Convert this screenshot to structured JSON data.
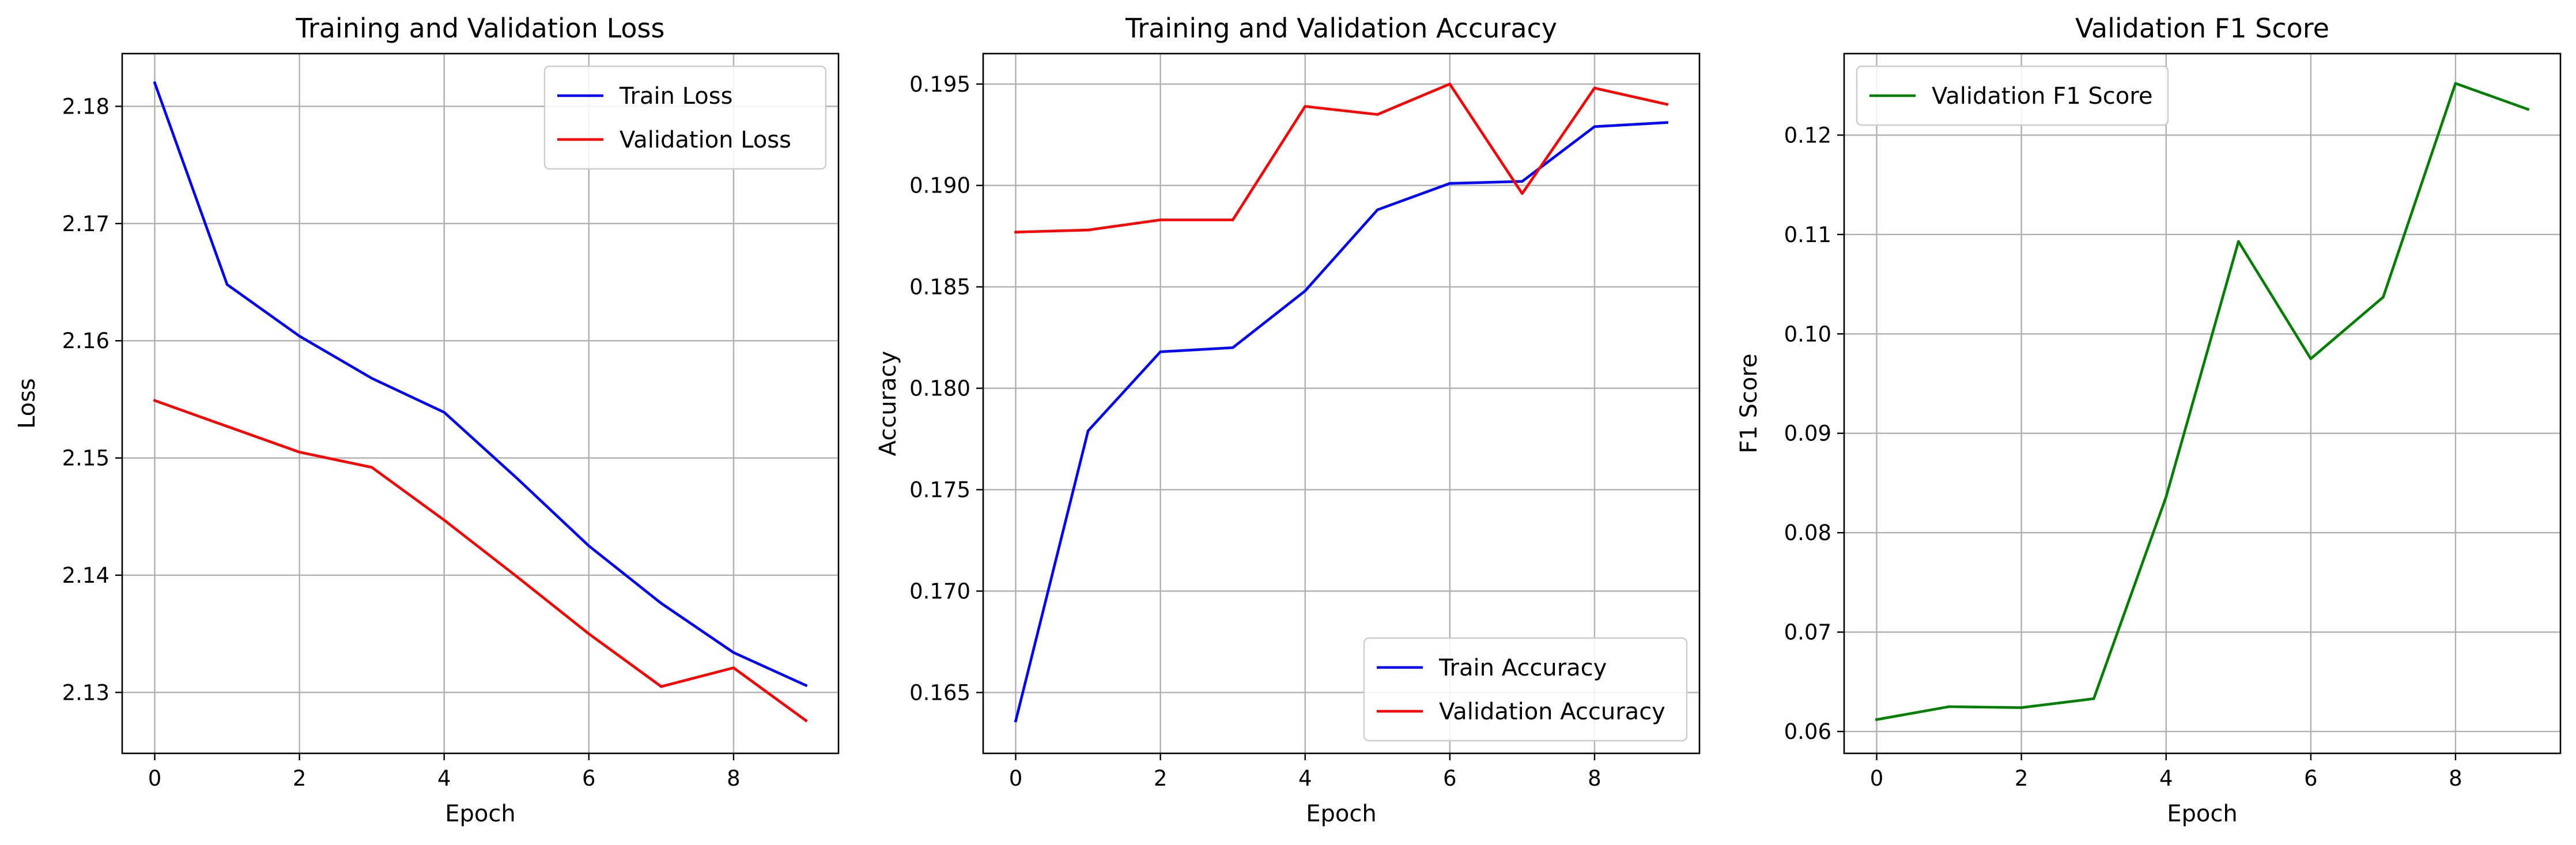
{
  "chart_data": [
    {
      "type": "line",
      "title": "Training and Validation Loss",
      "xlabel": "Epoch",
      "ylabel": "Loss",
      "x": [
        0,
        1,
        2,
        3,
        4,
        5,
        6,
        7,
        8,
        9
      ],
      "xlim": [
        -0.45,
        9.45
      ],
      "ylim": [
        2.1248,
        2.1845
      ],
      "xticks": [
        0,
        2,
        4,
        6,
        8
      ],
      "xtick_labels": [
        "0",
        "2",
        "4",
        "6",
        "8"
      ],
      "yticks": [
        2.13,
        2.14,
        2.15,
        2.16,
        2.17,
        2.18
      ],
      "ytick_labels": [
        "2.13",
        "2.14",
        "2.15",
        "2.16",
        "2.17",
        "2.18"
      ],
      "grid": true,
      "legend_position": "upper right",
      "series": [
        {
          "name": "Train Loss",
          "color": "#0000ff",
          "values": [
            2.182,
            2.1648,
            2.1604,
            2.1568,
            2.1539,
            2.1483,
            2.1425,
            2.1376,
            2.1334,
            2.1306
          ]
        },
        {
          "name": "Validation Loss",
          "color": "#ff0000",
          "values": [
            2.1549,
            2.1527,
            2.1505,
            2.1492,
            2.1447,
            2.1399,
            2.135,
            2.1305,
            2.1321,
            2.1276
          ]
        }
      ]
    },
    {
      "type": "line",
      "title": "Training and Validation Accuracy",
      "xlabel": "Epoch",
      "ylabel": "Accuracy",
      "x": [
        0,
        1,
        2,
        3,
        4,
        5,
        6,
        7,
        8,
        9
      ],
      "xlim": [
        -0.45,
        9.45
      ],
      "ylim": [
        0.162,
        0.1965
      ],
      "xticks": [
        0,
        2,
        4,
        6,
        8
      ],
      "xtick_labels": [
        "0",
        "2",
        "4",
        "6",
        "8"
      ],
      "yticks": [
        0.165,
        0.17,
        0.175,
        0.18,
        0.185,
        0.19,
        0.195
      ],
      "ytick_labels": [
        "0.165",
        "0.170",
        "0.175",
        "0.180",
        "0.185",
        "0.190",
        "0.195"
      ],
      "grid": true,
      "legend_position": "lower right",
      "series": [
        {
          "name": "Train Accuracy",
          "color": "#0000ff",
          "values": [
            0.1636,
            0.1779,
            0.1818,
            0.182,
            0.1848,
            0.1888,
            0.1901,
            0.1902,
            0.1929,
            0.1931
          ]
        },
        {
          "name": "Validation Accuracy",
          "color": "#ff0000",
          "values": [
            0.1877,
            0.1878,
            0.1883,
            0.1883,
            0.1939,
            0.1935,
            0.195,
            0.1896,
            0.1948,
            0.194
          ]
        }
      ]
    },
    {
      "type": "line",
      "title": "Validation F1 Score",
      "xlabel": "Epoch",
      "ylabel": "F1 Score",
      "x": [
        0,
        1,
        2,
        3,
        4,
        5,
        6,
        7,
        8,
        9
      ],
      "xlim": [
        -0.45,
        9.45
      ],
      "ylim": [
        0.0578,
        0.1282
      ],
      "xticks": [
        0,
        2,
        4,
        6,
        8
      ],
      "xtick_labels": [
        "0",
        "2",
        "4",
        "6",
        "8"
      ],
      "yticks": [
        0.06,
        0.07,
        0.08,
        0.09,
        0.1,
        0.11,
        0.12
      ],
      "ytick_labels": [
        "0.06",
        "0.07",
        "0.08",
        "0.09",
        "0.10",
        "0.11",
        "0.12"
      ],
      "grid": true,
      "legend_position": "upper left",
      "series": [
        {
          "name": "Validation F1 Score",
          "color": "#008000",
          "values": [
            0.0612,
            0.0625,
            0.0624,
            0.0633,
            0.0836,
            0.1093,
            0.0975,
            0.1037,
            0.1252,
            0.1226
          ]
        }
      ]
    }
  ]
}
